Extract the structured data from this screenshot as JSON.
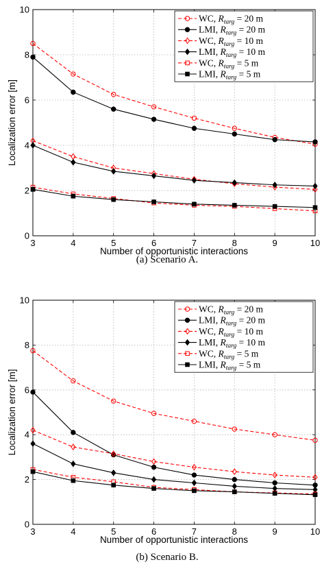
{
  "colors": {
    "wc": "#ff0000",
    "lmi": "#000000",
    "grid": "#b0b0b0"
  },
  "chart_data": [
    {
      "type": "line",
      "caption": "(a) Scenario A.",
      "xlabel": "Number of opportunistic interactions",
      "ylabel": "Localization error [m]",
      "xlim": [
        3,
        10
      ],
      "ylim": [
        0,
        10
      ],
      "xticks": [
        "3",
        "4",
        "5",
        "6",
        "7",
        "8",
        "9",
        "10"
      ],
      "yticks": [
        "0",
        "2",
        "4",
        "6",
        "8",
        "10"
      ],
      "grid": true,
      "legend_position": "top-right",
      "x": [
        3,
        4,
        5,
        6,
        7,
        8,
        9,
        10
      ],
      "series": [
        {
          "name": "WC, ",
          "rname": "R",
          "sub": "targ",
          "rest": " = 20 m",
          "color": "#ff0000",
          "dashed": true,
          "marker": "circle-open",
          "values": [
            8.5,
            7.15,
            6.25,
            5.7,
            5.2,
            4.75,
            4.35,
            4.05
          ]
        },
        {
          "name": "LMI, ",
          "rname": "R",
          "sub": "targ",
          "rest": " = 20 m",
          "color": "#000000",
          "dashed": false,
          "marker": "circle-filled",
          "values": [
            7.9,
            6.35,
            5.6,
            5.15,
            4.75,
            4.5,
            4.25,
            4.15
          ]
        },
        {
          "name": "WC, ",
          "rname": "R",
          "sub": "targ",
          "rest": " = 10 m",
          "color": "#ff0000",
          "dashed": true,
          "marker": "diamond-open",
          "values": [
            4.2,
            3.5,
            3.0,
            2.75,
            2.5,
            2.3,
            2.15,
            2.05
          ]
        },
        {
          "name": "LMI, ",
          "rname": "R",
          "sub": "targ",
          "rest": " = 10 m",
          "color": "#000000",
          "dashed": false,
          "marker": "diamond-filled",
          "values": [
            4.0,
            3.25,
            2.85,
            2.65,
            2.45,
            2.35,
            2.25,
            2.2
          ]
        },
        {
          "name": "WC, ",
          "rname": "R",
          "sub": "targ",
          "rest": " = 5 m",
          "color": "#ff0000",
          "dashed": true,
          "marker": "square-open",
          "values": [
            2.15,
            1.85,
            1.65,
            1.45,
            1.35,
            1.3,
            1.2,
            1.1
          ]
        },
        {
          "name": "LMI, ",
          "rname": "R",
          "sub": "targ",
          "rest": " = 5 m",
          "color": "#000000",
          "dashed": false,
          "marker": "square-filled",
          "values": [
            2.05,
            1.75,
            1.6,
            1.5,
            1.4,
            1.35,
            1.3,
            1.25
          ]
        }
      ]
    },
    {
      "type": "line",
      "caption": "(b) Scenario B.",
      "xlabel": "Number of opportunistic interactions",
      "ylabel": "Localization error [m]",
      "xlim": [
        3,
        10
      ],
      "ylim": [
        0,
        10
      ],
      "xticks": [
        "3",
        "4",
        "5",
        "6",
        "7",
        "8",
        "9",
        "10"
      ],
      "yticks": [
        "0",
        "2",
        "4",
        "6",
        "8",
        "10"
      ],
      "grid": true,
      "legend_position": "top-right",
      "x": [
        3,
        4,
        5,
        6,
        7,
        8,
        9,
        10
      ],
      "series": [
        {
          "name": "WC, ",
          "rname": "R",
          "sub": "targ",
          "rest": " = 20 m",
          "color": "#ff0000",
          "dashed": true,
          "marker": "circle-open",
          "values": [
            7.75,
            6.4,
            5.5,
            4.95,
            4.6,
            4.25,
            4.0,
            3.75
          ]
        },
        {
          "name": "LMI, ",
          "rname": "R",
          "sub": "targ",
          "rest": " = 20 m",
          "color": "#000000",
          "dashed": false,
          "marker": "circle-filled",
          "values": [
            5.9,
            4.1,
            3.1,
            2.55,
            2.2,
            2.0,
            1.85,
            1.75
          ]
        },
        {
          "name": "WC, ",
          "rname": "R",
          "sub": "targ",
          "rest": " = 10 m",
          "color": "#ff0000",
          "dashed": true,
          "marker": "diamond-open",
          "values": [
            4.2,
            3.45,
            3.15,
            2.8,
            2.55,
            2.35,
            2.2,
            2.1
          ]
        },
        {
          "name": "LMI, ",
          "rname": "R",
          "sub": "targ",
          "rest": " = 10 m",
          "color": "#000000",
          "dashed": false,
          "marker": "diamond-filled",
          "values": [
            3.6,
            2.7,
            2.3,
            2.0,
            1.85,
            1.7,
            1.6,
            1.55
          ]
        },
        {
          "name": "WC, ",
          "rname": "R",
          "sub": "targ",
          "rest": " = 5 m",
          "color": "#ff0000",
          "dashed": true,
          "marker": "square-open",
          "values": [
            2.45,
            2.1,
            1.9,
            1.65,
            1.55,
            1.45,
            1.4,
            1.35
          ]
        },
        {
          "name": "LMI, ",
          "rname": "R",
          "sub": "targ",
          "rest": " = 5 m",
          "color": "#000000",
          "dashed": false,
          "marker": "square-filled",
          "values": [
            2.35,
            1.95,
            1.75,
            1.6,
            1.5,
            1.45,
            1.38,
            1.32
          ]
        }
      ]
    }
  ]
}
